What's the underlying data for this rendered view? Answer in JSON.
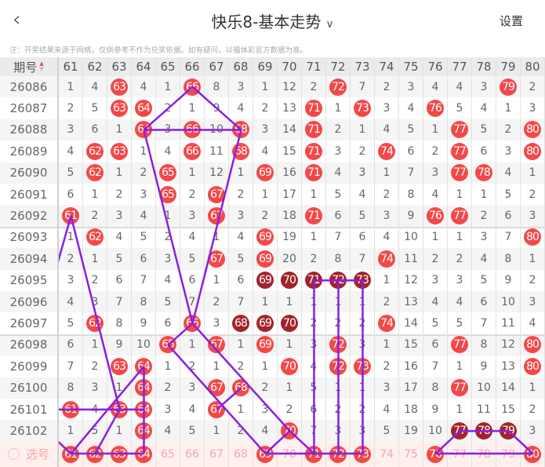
{
  "header": {
    "back_icon": "chevron-left-icon",
    "title": "快乐8-基本走势",
    "dropdown_icon": "chevron-down-icon",
    "settings_label": "设置"
  },
  "notice": "注：开奖结果来源于网络，仅供参考不作为兑奖依据。如有疑问，以福体彩官方数据为准。",
  "colors": {
    "ball": "#f44848",
    "consecutive_ball": "#a3232a",
    "trend_line": "#8a1fe0",
    "select_row_bg": "#fff0ee"
  },
  "table": {
    "period_header": "期号",
    "sort_icon": "sort-icon",
    "columns": [
      61,
      62,
      63,
      64,
      65,
      66,
      67,
      68,
      69,
      70,
      71,
      72,
      73,
      74,
      75,
      76,
      77,
      78,
      79,
      80
    ],
    "rows": [
      {
        "period": "26086",
        "cells": [
          1,
          4,
          63,
          4,
          1,
          66,
          8,
          3,
          1,
          12,
          2,
          72,
          7,
          2,
          3,
          4,
          4,
          3,
          79,
          2
        ],
        "hits": [
          63,
          66,
          72,
          79
        ],
        "consecutive": []
      },
      {
        "period": "26087",
        "cells": [
          2,
          5,
          63,
          64,
          2,
          1,
          9,
          4,
          2,
          13,
          71,
          1,
          73,
          3,
          4,
          76,
          5,
          4,
          1,
          3
        ],
        "hits": [
          63,
          64,
          71,
          73,
          76
        ],
        "consecutive": []
      },
      {
        "period": "26088",
        "cells": [
          3,
          6,
          1,
          64,
          3,
          66,
          10,
          68,
          3,
          14,
          71,
          2,
          1,
          4,
          5,
          1,
          77,
          5,
          2,
          80
        ],
        "hits": [
          64,
          66,
          68,
          71,
          77,
          80
        ],
        "consecutive": []
      },
      {
        "period": "26089",
        "cells": [
          4,
          62,
          63,
          1,
          4,
          66,
          11,
          68,
          4,
          15,
          71,
          3,
          2,
          74,
          6,
          2,
          77,
          6,
          3,
          80
        ],
        "hits": [
          62,
          63,
          66,
          68,
          71,
          74,
          77,
          80
        ],
        "consecutive": []
      },
      {
        "period": "26090",
        "cells": [
          5,
          62,
          1,
          2,
          65,
          1,
          12,
          1,
          69,
          16,
          71,
          4,
          3,
          1,
          7,
          3,
          77,
          78,
          4,
          1
        ],
        "hits": [
          62,
          65,
          69,
          71,
          77,
          78
        ],
        "consecutive": []
      },
      {
        "period": "26091",
        "cells": [
          6,
          1,
          2,
          3,
          65,
          2,
          67,
          2,
          1,
          17,
          1,
          5,
          4,
          2,
          8,
          4,
          1,
          1,
          5,
          2
        ],
        "hits": [
          65,
          67
        ],
        "consecutive": []
      },
      {
        "period": "26092",
        "cells": [
          61,
          2,
          3,
          4,
          1,
          3,
          67,
          3,
          2,
          18,
          71,
          6,
          5,
          3,
          9,
          76,
          77,
          2,
          6,
          3
        ],
        "hits": [
          61,
          67,
          71,
          76,
          77
        ],
        "consecutive": []
      },
      {
        "period": "26093",
        "cells": [
          1,
          62,
          4,
          5,
          2,
          4,
          1,
          4,
          69,
          19,
          1,
          7,
          6,
          4,
          10,
          1,
          1,
          3,
          7,
          80
        ],
        "hits": [
          62,
          69,
          80
        ],
        "consecutive": []
      },
      {
        "period": "26094",
        "cells": [
          2,
          1,
          5,
          6,
          3,
          5,
          67,
          5,
          69,
          20,
          2,
          8,
          7,
          74,
          11,
          2,
          2,
          4,
          8,
          1
        ],
        "hits": [
          67,
          69,
          74
        ],
        "consecutive": []
      },
      {
        "period": "26095",
        "cells": [
          3,
          2,
          6,
          7,
          4,
          6,
          1,
          6,
          69,
          70,
          71,
          72,
          73,
          1,
          12,
          3,
          3,
          5,
          9,
          2
        ],
        "hits": [
          69,
          70,
          71,
          72,
          73
        ],
        "consecutive": [
          69,
          70,
          71,
          72,
          73
        ]
      },
      {
        "period": "26096",
        "cells": [
          4,
          3,
          7,
          8,
          5,
          7,
          2,
          7,
          1,
          1,
          1,
          1,
          1,
          2,
          13,
          4,
          4,
          6,
          10,
          3
        ],
        "hits": [],
        "consecutive": []
      },
      {
        "period": "26097",
        "cells": [
          5,
          62,
          8,
          9,
          6,
          66,
          3,
          68,
          69,
          70,
          2,
          2,
          2,
          74,
          14,
          5,
          5,
          7,
          11,
          4
        ],
        "hits": [
          62,
          66,
          68,
          69,
          70,
          74
        ],
        "consecutive": [
          68,
          69,
          70
        ]
      },
      {
        "period": "26098",
        "cells": [
          6,
          1,
          9,
          10,
          65,
          1,
          67,
          1,
          69,
          1,
          3,
          72,
          3,
          1,
          15,
          6,
          77,
          8,
          12,
          80
        ],
        "hits": [
          65,
          67,
          69,
          72,
          77,
          80
        ],
        "consecutive": []
      },
      {
        "period": "26099",
        "cells": [
          7,
          2,
          63,
          64,
          1,
          2,
          1,
          2,
          1,
          70,
          4,
          72,
          73,
          2,
          16,
          7,
          1,
          9,
          13,
          80
        ],
        "hits": [
          63,
          64,
          70,
          72,
          73,
          80
        ],
        "consecutive": []
      },
      {
        "period": "26100",
        "cells": [
          8,
          3,
          1,
          64,
          2,
          3,
          67,
          68,
          2,
          1,
          5,
          1,
          1,
          3,
          17,
          8,
          77,
          10,
          14,
          1
        ],
        "hits": [
          64,
          67,
          68,
          77
        ],
        "consecutive": []
      },
      {
        "period": "26101",
        "cells": [
          61,
          4,
          63,
          64,
          3,
          4,
          67,
          1,
          3,
          2,
          6,
          2,
          2,
          4,
          18,
          9,
          1,
          11,
          15,
          2
        ],
        "hits": [
          61,
          63,
          64,
          67
        ],
        "consecutive": []
      },
      {
        "period": "26102",
        "cells": [
          1,
          5,
          1,
          64,
          4,
          5,
          1,
          2,
          4,
          70,
          7,
          3,
          3,
          5,
          19,
          10,
          77,
          78,
          79,
          3
        ],
        "hits": [
          64,
          70,
          77,
          78,
          79
        ],
        "consecutive": [
          77,
          78,
          79
        ]
      }
    ],
    "select_row": {
      "label": "选号",
      "radio_icon": "radio-circle-icon",
      "selected": [
        61,
        62,
        63,
        64,
        69,
        71,
        72,
        73,
        76,
        80
      ]
    }
  },
  "trend_lines": [
    [
      [
        64,
        "26088"
      ],
      [
        66,
        "26086"
      ],
      [
        68,
        "26088"
      ],
      [
        64,
        "26088"
      ]
    ],
    [
      [
        64,
        "26088"
      ],
      [
        66,
        "26097"
      ],
      [
        68,
        "26088"
      ]
    ],
    [
      [
        60,
        "26096"
      ],
      [
        61,
        "26092"
      ],
      [
        63,
        "26101"
      ]
    ],
    [
      [
        60,
        "26101"
      ],
      [
        61,
        "26101"
      ],
      [
        64,
        "26101"
      ]
    ],
    [
      [
        64,
        "26099"
      ],
      [
        64,
        "选号"
      ]
    ],
    [
      [
        64,
        "26099"
      ],
      [
        61,
        "选号"
      ]
    ],
    [
      [
        63,
        "26101"
      ],
      [
        62,
        "选号"
      ]
    ],
    [
      [
        60,
        "26102"
      ],
      [
        61,
        "选号"
      ],
      [
        64,
        "选号"
      ]
    ],
    [
      [
        66,
        "26097"
      ],
      [
        65,
        "26098"
      ],
      [
        69,
        "选号"
      ]
    ],
    [
      [
        66,
        "26097"
      ],
      [
        70,
        "26102"
      ],
      [
        71,
        "选号"
      ]
    ],
    [
      [
        67,
        "26101"
      ],
      [
        68,
        "26100"
      ]
    ],
    [
      [
        69,
        "选号"
      ],
      [
        70,
        "26102"
      ]
    ],
    [
      [
        71,
        "选号"
      ],
      [
        71,
        "26095"
      ],
      [
        73,
        "26095"
      ],
      [
        73,
        "选号"
      ]
    ],
    [
      [
        72,
        "26095"
      ],
      [
        72,
        "选号"
      ]
    ],
    [
      [
        69,
        "选号"
      ],
      [
        73,
        "选号"
      ]
    ],
    [
      [
        76,
        "选号"
      ],
      [
        77,
        "26102"
      ],
      [
        79,
        "26102"
      ],
      [
        80,
        "选号"
      ],
      [
        76,
        "选号"
      ]
    ]
  ]
}
